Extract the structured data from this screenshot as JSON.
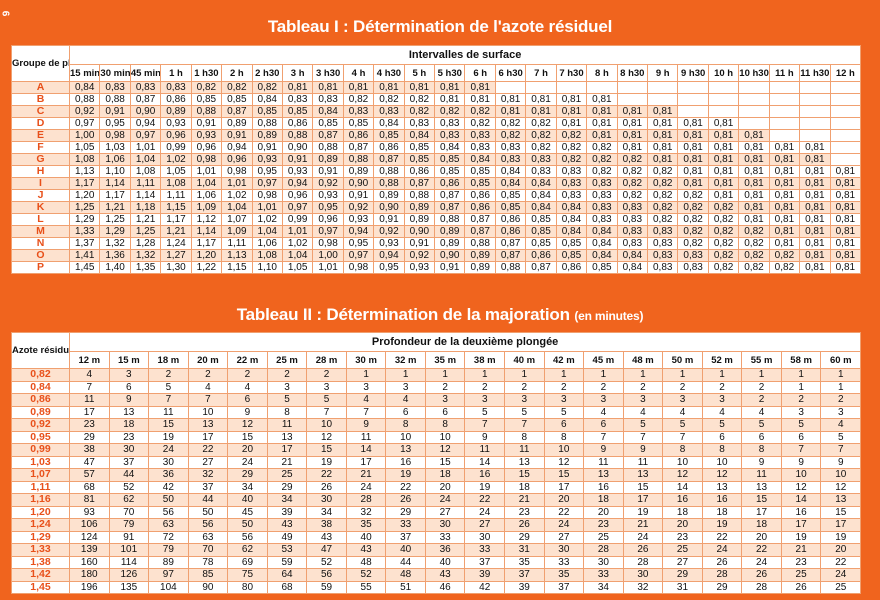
{
  "page_number": "6",
  "table1": {
    "title": "Tableau I : Détermination de l'azote résiduel",
    "corner_label": "Groupe de plongée successive",
    "span_header": "Intervalles de surface",
    "columns": [
      "15 min",
      "30 min",
      "45 min",
      "1 h",
      "1 h30",
      "2 h",
      "2 h30",
      "3 h",
      "3 h30",
      "4 h",
      "4 h30",
      "5 h",
      "5 h30",
      "6 h",
      "6 h30",
      "7 h",
      "7 h30",
      "8 h",
      "8 h30",
      "9 h",
      "9 h30",
      "10 h",
      "10 h30",
      "11 h",
      "11 h30",
      "12 h"
    ],
    "rows": [
      {
        "label": "A",
        "values": [
          "0,84",
          "0,83",
          "0,83",
          "0,83",
          "0,82",
          "0,82",
          "0,82",
          "0,81",
          "0,81",
          "0,81",
          "0,81",
          "0,81",
          "0,81",
          "0,81"
        ]
      },
      {
        "label": "B",
        "values": [
          "0,88",
          "0,88",
          "0,87",
          "0,86",
          "0,85",
          "0,85",
          "0,84",
          "0,83",
          "0,83",
          "0,82",
          "0,82",
          "0,82",
          "0,81",
          "0,81",
          "0,81",
          "0,81",
          "0,81",
          "0,81"
        ]
      },
      {
        "label": "C",
        "values": [
          "0,92",
          "0,91",
          "0,90",
          "0,89",
          "0,88",
          "0,87",
          "0,85",
          "0,85",
          "0,84",
          "0,83",
          "0,83",
          "0,82",
          "0,82",
          "0,82",
          "0,81",
          "0,81",
          "0,81",
          "0,81",
          "0,81",
          "0,81"
        ]
      },
      {
        "label": "D",
        "values": [
          "0,97",
          "0,95",
          "0,94",
          "0,93",
          "0,91",
          "0,89",
          "0,88",
          "0,86",
          "0,85",
          "0,85",
          "0,84",
          "0,83",
          "0,83",
          "0,82",
          "0,82",
          "0,82",
          "0,81",
          "0,81",
          "0,81",
          "0,81",
          "0,81",
          "0,81"
        ]
      },
      {
        "label": "E",
        "values": [
          "1,00",
          "0,98",
          "0,97",
          "0,96",
          "0,93",
          "0,91",
          "0,89",
          "0,88",
          "0,87",
          "0,86",
          "0,85",
          "0,84",
          "0,83",
          "0,83",
          "0,82",
          "0,82",
          "0,82",
          "0,81",
          "0,81",
          "0,81",
          "0,81",
          "0,81",
          "0,81"
        ]
      },
      {
        "label": "F",
        "values": [
          "1,05",
          "1,03",
          "1,01",
          "0,99",
          "0,96",
          "0,94",
          "0,91",
          "0,90",
          "0,88",
          "0,87",
          "0,86",
          "0,85",
          "0,84",
          "0,83",
          "0,83",
          "0,82",
          "0,82",
          "0,82",
          "0,81",
          "0,81",
          "0,81",
          "0,81",
          "0,81",
          "0,81",
          "0,81"
        ]
      },
      {
        "label": "G",
        "values": [
          "1,08",
          "1,06",
          "1,04",
          "1,02",
          "0,98",
          "0,96",
          "0,93",
          "0,91",
          "0,89",
          "0,88",
          "0,87",
          "0,85",
          "0,85",
          "0,84",
          "0,83",
          "0,83",
          "0,82",
          "0,82",
          "0,82",
          "0,81",
          "0,81",
          "0,81",
          "0,81",
          "0,81",
          "0,81"
        ]
      },
      {
        "label": "H",
        "values": [
          "1,13",
          "1,10",
          "1,08",
          "1,05",
          "1,01",
          "0,98",
          "0,95",
          "0,93",
          "0,91",
          "0,89",
          "0,88",
          "0,86",
          "0,85",
          "0,85",
          "0,84",
          "0,83",
          "0,83",
          "0,82",
          "0,82",
          "0,82",
          "0,81",
          "0,81",
          "0,81",
          "0,81",
          "0,81",
          "0,81"
        ]
      },
      {
        "label": "I",
        "values": [
          "1,17",
          "1,14",
          "1,11",
          "1,08",
          "1,04",
          "1,01",
          "0,97",
          "0,94",
          "0,92",
          "0,90",
          "0,88",
          "0,87",
          "0,86",
          "0,85",
          "0,84",
          "0,84",
          "0,83",
          "0,83",
          "0,82",
          "0,82",
          "0,81",
          "0,81",
          "0,81",
          "0,81",
          "0,81",
          "0,81"
        ]
      },
      {
        "label": "J",
        "values": [
          "1,20",
          "1,17",
          "1,14",
          "1,11",
          "1,06",
          "1,02",
          "0,98",
          "0,96",
          "0,93",
          "0,91",
          "0,89",
          "0,88",
          "0,87",
          "0,86",
          "0,85",
          "0,84",
          "0,83",
          "0,83",
          "0,82",
          "0,82",
          "0,82",
          "0,81",
          "0,81",
          "0,81",
          "0,81",
          "0,81"
        ]
      },
      {
        "label": "K",
        "values": [
          "1,25",
          "1,21",
          "1,18",
          "1,15",
          "1,09",
          "1,04",
          "1,01",
          "0,97",
          "0,95",
          "0,92",
          "0,90",
          "0,89",
          "0,87",
          "0,86",
          "0,85",
          "0,84",
          "0,84",
          "0,83",
          "0,83",
          "0,82",
          "0,82",
          "0,82",
          "0,81",
          "0,81",
          "0,81",
          "0,81"
        ]
      },
      {
        "label": "L",
        "values": [
          "1,29",
          "1,25",
          "1,21",
          "1,17",
          "1,12",
          "1,07",
          "1,02",
          "0,99",
          "0,96",
          "0,93",
          "0,91",
          "0,89",
          "0,88",
          "0,87",
          "0,86",
          "0,85",
          "0,84",
          "0,83",
          "0,83",
          "0,82",
          "0,82",
          "0,82",
          "0,81",
          "0,81",
          "0,81",
          "0,81"
        ]
      },
      {
        "label": "M",
        "values": [
          "1,33",
          "1,29",
          "1,25",
          "1,21",
          "1,14",
          "1,09",
          "1,04",
          "1,01",
          "0,97",
          "0,94",
          "0,92",
          "0,90",
          "0,89",
          "0,87",
          "0,86",
          "0,85",
          "0,84",
          "0,84",
          "0,83",
          "0,83",
          "0,82",
          "0,82",
          "0,82",
          "0,81",
          "0,81",
          "0,81"
        ]
      },
      {
        "label": "N",
        "values": [
          "1,37",
          "1,32",
          "1,28",
          "1,24",
          "1,17",
          "1,11",
          "1,06",
          "1,02",
          "0,98",
          "0,95",
          "0,93",
          "0,91",
          "0,89",
          "0,88",
          "0,87",
          "0,85",
          "0,85",
          "0,84",
          "0,83",
          "0,83",
          "0,82",
          "0,82",
          "0,82",
          "0,81",
          "0,81",
          "0,81"
        ]
      },
      {
        "label": "O",
        "values": [
          "1,41",
          "1,36",
          "1,32",
          "1,27",
          "1,20",
          "1,13",
          "1,08",
          "1,04",
          "1,00",
          "0,97",
          "0,94",
          "0,92",
          "0,90",
          "0,89",
          "0,87",
          "0,86",
          "0,85",
          "0,84",
          "0,84",
          "0,83",
          "0,83",
          "0,82",
          "0,82",
          "0,82",
          "0,81",
          "0,81"
        ]
      },
      {
        "label": "P",
        "values": [
          "1,45",
          "1,40",
          "1,35",
          "1,30",
          "1,22",
          "1,15",
          "1,10",
          "1,05",
          "1,01",
          "0,98",
          "0,95",
          "0,93",
          "0,91",
          "0,89",
          "0,88",
          "0,87",
          "0,86",
          "0,85",
          "0,84",
          "0,83",
          "0,83",
          "0,82",
          "0,82",
          "0,82",
          "0,81",
          "0,81"
        ]
      }
    ]
  },
  "table2": {
    "title": "Tableau II : Détermination de la majoration",
    "title_suffix": "(en minutes)",
    "corner_label": "Azote résiduel",
    "span_header": "Profondeur de la deuxième plongée",
    "columns": [
      "12 m",
      "15 m",
      "18 m",
      "20 m",
      "22 m",
      "25 m",
      "28 m",
      "30 m",
      "32 m",
      "35 m",
      "38 m",
      "40 m",
      "42 m",
      "45 m",
      "48 m",
      "50 m",
      "52 m",
      "55 m",
      "58 m",
      "60 m"
    ],
    "rows": [
      {
        "label": "0,82",
        "values": [
          "4",
          "3",
          "2",
          "2",
          "2",
          "2",
          "2",
          "1",
          "1",
          "1",
          "1",
          "1",
          "1",
          "1",
          "1",
          "1",
          "1",
          "1",
          "1",
          "1"
        ]
      },
      {
        "label": "0,84",
        "values": [
          "7",
          "6",
          "5",
          "4",
          "4",
          "3",
          "3",
          "3",
          "3",
          "2",
          "2",
          "2",
          "2",
          "2",
          "2",
          "2",
          "2",
          "2",
          "1",
          "1"
        ]
      },
      {
        "label": "0,86",
        "values": [
          "11",
          "9",
          "7",
          "7",
          "6",
          "5",
          "5",
          "4",
          "4",
          "3",
          "3",
          "3",
          "3",
          "3",
          "3",
          "3",
          "3",
          "2",
          "2",
          "2"
        ]
      },
      {
        "label": "0,89",
        "values": [
          "17",
          "13",
          "11",
          "10",
          "9",
          "8",
          "7",
          "7",
          "6",
          "6",
          "5",
          "5",
          "5",
          "4",
          "4",
          "4",
          "4",
          "4",
          "3",
          "3"
        ]
      },
      {
        "label": "0,92",
        "values": [
          "23",
          "18",
          "15",
          "13",
          "12",
          "11",
          "10",
          "9",
          "8",
          "8",
          "7",
          "7",
          "6",
          "6",
          "5",
          "5",
          "5",
          "5",
          "5",
          "4"
        ]
      },
      {
        "label": "0,95",
        "values": [
          "29",
          "23",
          "19",
          "17",
          "15",
          "13",
          "12",
          "11",
          "10",
          "10",
          "9",
          "8",
          "8",
          "7",
          "7",
          "7",
          "6",
          "6",
          "6",
          "5"
        ]
      },
      {
        "label": "0,99",
        "values": [
          "38",
          "30",
          "24",
          "22",
          "20",
          "17",
          "15",
          "14",
          "13",
          "12",
          "11",
          "11",
          "10",
          "9",
          "9",
          "8",
          "8",
          "8",
          "7",
          "7"
        ]
      },
      {
        "label": "1,03",
        "values": [
          "47",
          "37",
          "30",
          "27",
          "24",
          "21",
          "19",
          "17",
          "16",
          "15",
          "14",
          "13",
          "12",
          "11",
          "11",
          "10",
          "10",
          "9",
          "9",
          "9"
        ]
      },
      {
        "label": "1,07",
        "values": [
          "57",
          "44",
          "36",
          "32",
          "29",
          "25",
          "22",
          "21",
          "19",
          "18",
          "16",
          "15",
          "15",
          "13",
          "13",
          "12",
          "12",
          "11",
          "10",
          "10"
        ]
      },
      {
        "label": "1,11",
        "values": [
          "68",
          "52",
          "42",
          "37",
          "34",
          "29",
          "26",
          "24",
          "22",
          "20",
          "19",
          "18",
          "17",
          "16",
          "15",
          "14",
          "13",
          "13",
          "12",
          "12"
        ]
      },
      {
        "label": "1,16",
        "values": [
          "81",
          "62",
          "50",
          "44",
          "40",
          "34",
          "30",
          "28",
          "26",
          "24",
          "22",
          "21",
          "20",
          "18",
          "17",
          "16",
          "16",
          "15",
          "14",
          "13"
        ]
      },
      {
        "label": "1,20",
        "values": [
          "93",
          "70",
          "56",
          "50",
          "45",
          "39",
          "34",
          "32",
          "29",
          "27",
          "24",
          "23",
          "22",
          "20",
          "19",
          "18",
          "18",
          "17",
          "16",
          "15"
        ]
      },
      {
        "label": "1,24",
        "values": [
          "106",
          "79",
          "63",
          "56",
          "50",
          "43",
          "38",
          "35",
          "33",
          "30",
          "27",
          "26",
          "24",
          "23",
          "21",
          "20",
          "19",
          "18",
          "17",
          "17"
        ]
      },
      {
        "label": "1,29",
        "values": [
          "124",
          "91",
          "72",
          "63",
          "56",
          "49",
          "43",
          "40",
          "37",
          "33",
          "30",
          "29",
          "27",
          "25",
          "24",
          "23",
          "22",
          "20",
          "19",
          "19"
        ]
      },
      {
        "label": "1,33",
        "values": [
          "139",
          "101",
          "79",
          "70",
          "62",
          "53",
          "47",
          "43",
          "40",
          "36",
          "33",
          "31",
          "30",
          "28",
          "26",
          "25",
          "24",
          "22",
          "21",
          "20"
        ]
      },
      {
        "label": "1,38",
        "values": [
          "160",
          "114",
          "89",
          "78",
          "69",
          "59",
          "52",
          "48",
          "44",
          "40",
          "37",
          "35",
          "33",
          "30",
          "28",
          "27",
          "26",
          "24",
          "23",
          "22"
        ]
      },
      {
        "label": "1,42",
        "values": [
          "180",
          "126",
          "97",
          "85",
          "75",
          "64",
          "56",
          "52",
          "48",
          "43",
          "39",
          "37",
          "35",
          "33",
          "30",
          "29",
          "28",
          "26",
          "25",
          "24"
        ]
      },
      {
        "label": "1,45",
        "values": [
          "196",
          "135",
          "104",
          "90",
          "80",
          "68",
          "59",
          "55",
          "51",
          "46",
          "42",
          "39",
          "37",
          "34",
          "32",
          "31",
          "29",
          "28",
          "26",
          "25"
        ]
      }
    ]
  }
}
